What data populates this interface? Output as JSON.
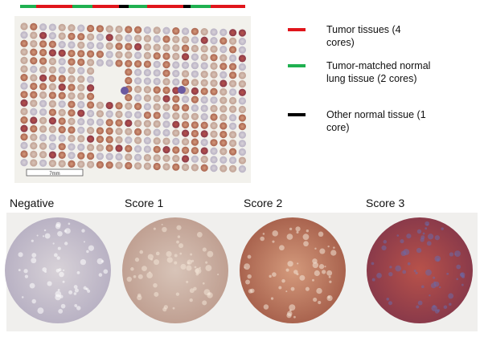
{
  "legend": [
    {
      "label": "Tumor tissues (4 cores)",
      "color": "#e0151b"
    },
    {
      "label": "Tumor-matched normal lung tissue (2 cores)",
      "color": "#1fb050"
    },
    {
      "label": "Other normal tissue (1 core)",
      "color": "#000000"
    }
  ],
  "scale_bar": "7mm",
  "panels": [
    "Negative",
    "Score 1",
    "Score 2",
    "Score 3"
  ]
}
